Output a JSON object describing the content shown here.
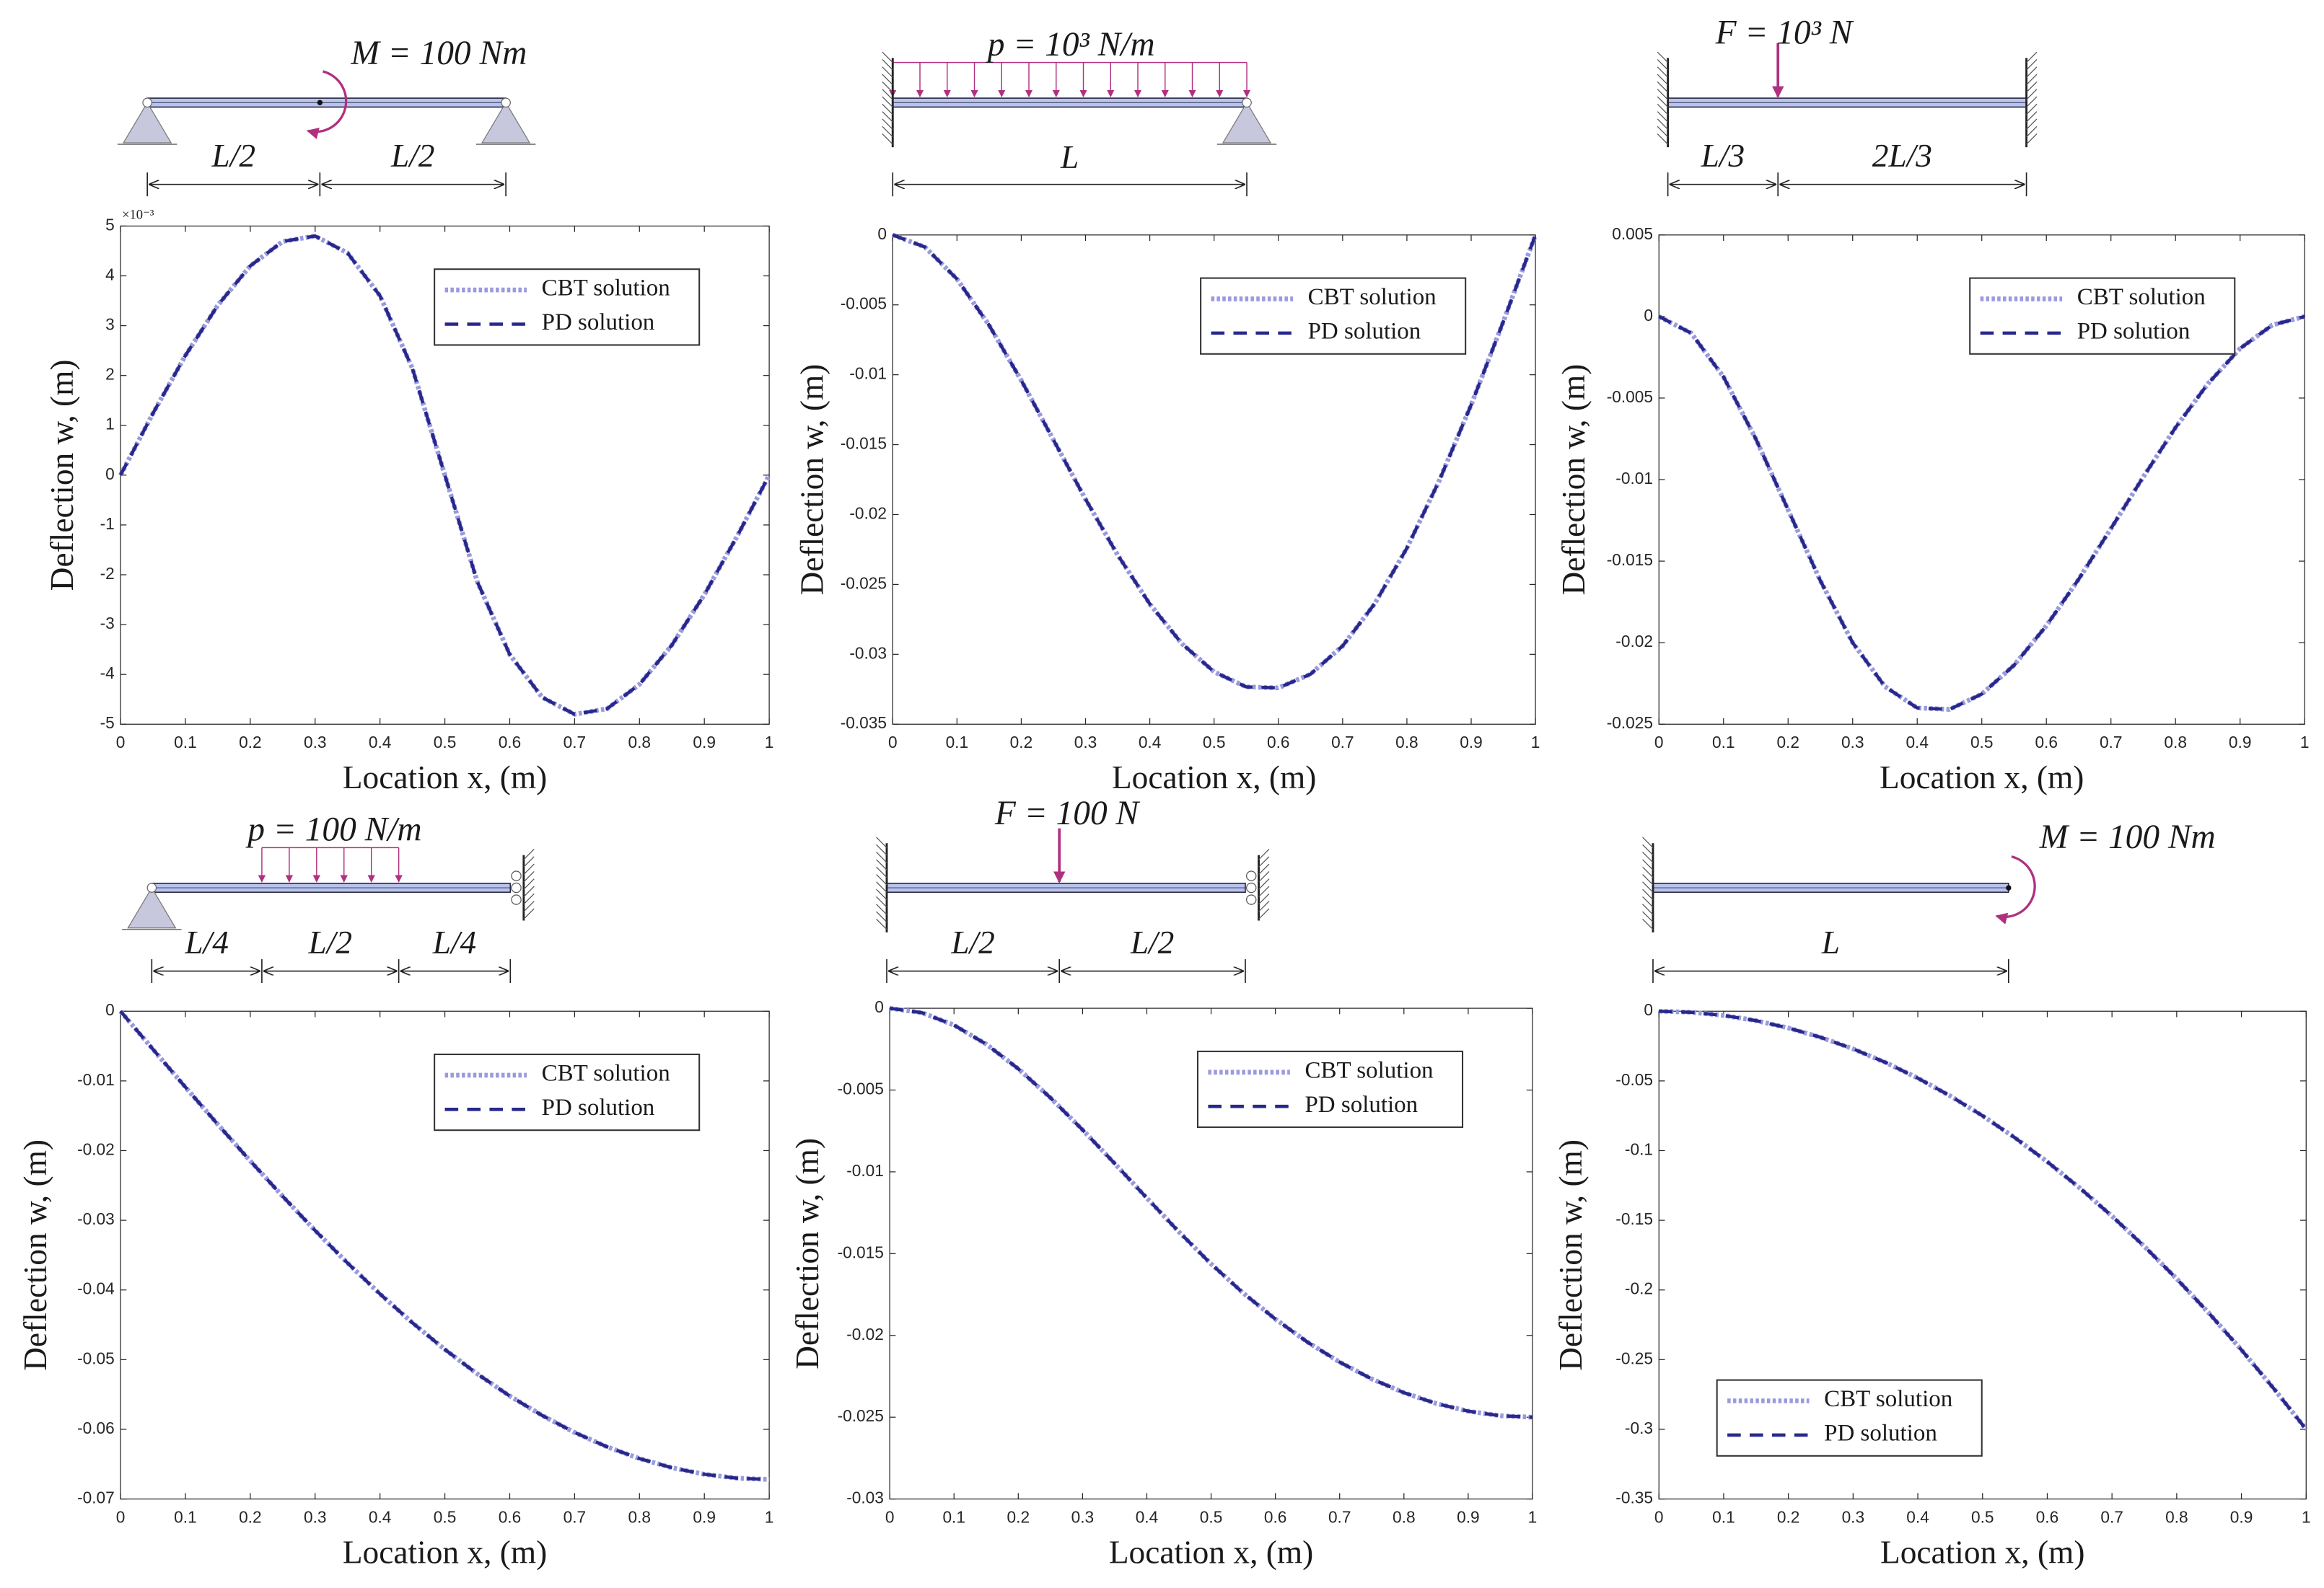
{
  "chart_data": [
    {
      "type": "line",
      "x_label": "Location x, (m)",
      "y_label": "Deflection w, (m)",
      "y_exponent": "×10⁻³",
      "load_label": "M = 100 Nm",
      "spans": [
        "L/2",
        "L/2"
      ],
      "legend": "upper right",
      "grid": false,
      "x": [
        0,
        0.05,
        0.1,
        0.15,
        0.2,
        0.25,
        0.3,
        0.35,
        0.4,
        0.45,
        0.5,
        0.55,
        0.6,
        0.65,
        0.7,
        0.75,
        0.8,
        0.85,
        0.9,
        0.95,
        1
      ],
      "xlim": [
        0,
        1
      ],
      "xticks": [
        0,
        0.1,
        0.2,
        0.3,
        0.4,
        0.5,
        0.6,
        0.7,
        0.8,
        0.9,
        1
      ],
      "ylim": [
        -5,
        5
      ],
      "yticks": [
        -5,
        -4,
        -3,
        -2,
        -1,
        0,
        1,
        2,
        3,
        4,
        5
      ],
      "series": [
        {
          "name": "CBT solution",
          "color": "#9a9ade",
          "style": "dotted",
          "values": [
            0,
            1.24,
            2.4,
            3.41,
            4.2,
            4.69,
            4.8,
            4.46,
            3.6,
            2.14,
            0,
            -2.14,
            -3.6,
            -4.46,
            -4.8,
            -4.69,
            -4.2,
            -3.41,
            -2.4,
            -1.24,
            0
          ]
        },
        {
          "name": "PD solution",
          "color": "#27278c",
          "style": "dashed",
          "values": [
            0,
            1.24,
            2.4,
            3.41,
            4.2,
            4.69,
            4.8,
            4.46,
            3.6,
            2.14,
            0,
            -2.14,
            -3.6,
            -4.46,
            -4.8,
            -4.69,
            -4.2,
            -3.41,
            -2.4,
            -1.24,
            0
          ]
        }
      ]
    },
    {
      "type": "line",
      "x_label": "Location x, (m)",
      "y_label": "Deflection w, (m)",
      "load_label": "p = 10³ N/m",
      "spans": [
        "L"
      ],
      "legend": "upper right",
      "grid": false,
      "x": [
        0,
        0.05,
        0.1,
        0.15,
        0.2,
        0.25,
        0.3,
        0.35,
        0.4,
        0.45,
        0.5,
        0.55,
        0.6,
        0.65,
        0.7,
        0.75,
        0.8,
        0.85,
        0.9,
        0.95,
        1
      ],
      "xlim": [
        0,
        1
      ],
      "xticks": [
        0,
        0.1,
        0.2,
        0.3,
        0.4,
        0.5,
        0.6,
        0.7,
        0.8,
        0.9,
        1
      ],
      "ylim": [
        -0.035,
        0
      ],
      "yticks": [
        -0.035,
        -0.03,
        -0.025,
        -0.02,
        -0.015,
        -0.01,
        -0.005,
        0
      ],
      "series": [
        {
          "name": "CBT solution",
          "color": "#9a9ade",
          "style": "dotted",
          "values": [
            0,
            -0.00086,
            -0.00315,
            -0.00646,
            -0.0104,
            -0.01465,
            -0.0189,
            -0.02289,
            -0.0264,
            -0.02924,
            -0.03125,
            -0.03233,
            -0.0324,
            -0.03142,
            -0.0294,
            -0.02637,
            -0.0224,
            -0.01761,
            -0.01215,
            -0.0062,
            0
          ]
        },
        {
          "name": "PD solution",
          "color": "#27278c",
          "style": "dashed",
          "values": [
            0,
            -0.00086,
            -0.00315,
            -0.00646,
            -0.0104,
            -0.01465,
            -0.0189,
            -0.02289,
            -0.0264,
            -0.02924,
            -0.03125,
            -0.03233,
            -0.0324,
            -0.03142,
            -0.0294,
            -0.02637,
            -0.0224,
            -0.01761,
            -0.01215,
            -0.0062,
            0
          ]
        }
      ]
    },
    {
      "type": "line",
      "x_label": "Location x, (m)",
      "y_label": "Deflection w, (m)",
      "load_label": "F = 10³ N",
      "spans": [
        "L/3",
        "2L/3"
      ],
      "legend": "upper right",
      "grid": false,
      "x": [
        0,
        0.05,
        0.1,
        0.15,
        0.2,
        0.25,
        0.3,
        0.35,
        0.4,
        0.45,
        0.5,
        0.55,
        0.6,
        0.65,
        0.7,
        0.75,
        0.8,
        0.85,
        0.9,
        0.95,
        1
      ],
      "xlim": [
        0,
        1
      ],
      "xticks": [
        0,
        0.1,
        0.2,
        0.3,
        0.4,
        0.5,
        0.6,
        0.7,
        0.8,
        0.9,
        1
      ],
      "ylim": [
        -0.025,
        0.005
      ],
      "yticks": [
        -0.025,
        -0.02,
        -0.015,
        -0.01,
        -0.005,
        0,
        0.005
      ],
      "series": [
        {
          "name": "CBT solution",
          "color": "#9a9ade",
          "style": "dotted",
          "values": [
            0,
            -0.00102,
            -0.0037,
            -0.0075,
            -0.01185,
            -0.0162,
            -0.02,
            -0.02269,
            -0.024,
            -0.02409,
            -0.02315,
            -0.02138,
            -0.01896,
            -0.01611,
            -0.013,
            -0.00984,
            -0.00681,
            -0.00413,
            -0.00196,
            -0.00052,
            0
          ]
        },
        {
          "name": "PD solution",
          "color": "#27278c",
          "style": "dashed",
          "values": [
            0,
            -0.00102,
            -0.0037,
            -0.0075,
            -0.01185,
            -0.0162,
            -0.02,
            -0.02269,
            -0.024,
            -0.02409,
            -0.02315,
            -0.02138,
            -0.01896,
            -0.01611,
            -0.013,
            -0.00984,
            -0.00681,
            -0.00413,
            -0.00196,
            -0.00052,
            0
          ]
        }
      ]
    },
    {
      "type": "line",
      "x_label": "Location x, (m)",
      "y_label": "Deflection w, (m)",
      "load_label": "p = 100 N/m",
      "spans": [
        "L/4",
        "L/2",
        "L/4"
      ],
      "legend": "upper right",
      "grid": false,
      "x": [
        0,
        0.05,
        0.1,
        0.15,
        0.2,
        0.25,
        0.3,
        0.35,
        0.4,
        0.45,
        0.5,
        0.55,
        0.6,
        0.65,
        0.7,
        0.75,
        0.8,
        0.85,
        0.9,
        0.95,
        1
      ],
      "xlim": [
        0,
        1
      ],
      "xticks": [
        0,
        0.1,
        0.2,
        0.3,
        0.4,
        0.5,
        0.6,
        0.7,
        0.8,
        0.9,
        1
      ],
      "ylim": [
        -0.07,
        0
      ],
      "yticks": [
        -0.07,
        -0.06,
        -0.05,
        -0.04,
        -0.03,
        -0.02,
        -0.01,
        0
      ],
      "series": [
        {
          "name": "CBT solution",
          "color": "#9a9ade",
          "style": "dotted",
          "values": [
            0,
            -0.00546,
            -0.01089,
            -0.01624,
            -0.02148,
            -0.02656,
            -0.03147,
            -0.03614,
            -0.04057,
            -0.04471,
            -0.04854,
            -0.05205,
            -0.05521,
            -0.05801,
            -0.06045,
            -0.06251,
            -0.0642,
            -0.06551,
            -0.06645,
            -0.06701,
            -0.0672
          ]
        },
        {
          "name": "PD solution",
          "color": "#27278c",
          "style": "dashed",
          "values": [
            0,
            -0.00546,
            -0.01089,
            -0.01624,
            -0.02148,
            -0.02656,
            -0.03147,
            -0.03614,
            -0.04057,
            -0.04471,
            -0.04854,
            -0.05205,
            -0.05521,
            -0.05801,
            -0.06045,
            -0.06251,
            -0.0642,
            -0.06551,
            -0.06645,
            -0.06701,
            -0.0672
          ]
        }
      ]
    },
    {
      "type": "line",
      "x_label": "Location x, (m)",
      "y_label": "Deflection w, (m)",
      "load_label": "F = 100 N",
      "spans": [
        "L/2",
        "L/2"
      ],
      "legend": "upper right",
      "grid": false,
      "x": [
        0,
        0.05,
        0.1,
        0.15,
        0.2,
        0.25,
        0.3,
        0.35,
        0.4,
        0.45,
        0.5,
        0.55,
        0.6,
        0.65,
        0.7,
        0.75,
        0.8,
        0.85,
        0.9,
        0.95,
        1
      ],
      "xlim": [
        0,
        1
      ],
      "xticks": [
        0,
        0.1,
        0.2,
        0.3,
        0.4,
        0.5,
        0.6,
        0.7,
        0.8,
        0.9,
        1
      ],
      "ylim": [
        -0.03,
        0
      ],
      "yticks": [
        -0.03,
        -0.025,
        -0.02,
        -0.015,
        -0.01,
        -0.005,
        0
      ],
      "series": [
        {
          "name": "CBT solution",
          "color": "#9a9ade",
          "style": "dotted",
          "values": [
            0,
            -0.00027,
            -0.00103,
            -0.00219,
            -0.0037,
            -0.00547,
            -0.00743,
            -0.00949,
            -0.0116,
            -0.01367,
            -0.01563,
            -0.01741,
            -0.019,
            -0.02041,
            -0.02163,
            -0.02266,
            -0.0235,
            -0.02416,
            -0.02463,
            -0.02491,
            -0.025
          ]
        },
        {
          "name": "PD solution",
          "color": "#27278c",
          "style": "dashed",
          "values": [
            0,
            -0.00027,
            -0.00103,
            -0.00219,
            -0.0037,
            -0.00547,
            -0.00743,
            -0.00949,
            -0.0116,
            -0.01367,
            -0.01563,
            -0.01741,
            -0.019,
            -0.02041,
            -0.02163,
            -0.02266,
            -0.0235,
            -0.02416,
            -0.02463,
            -0.02491,
            -0.025
          ]
        }
      ]
    },
    {
      "type": "line",
      "x_label": "Location x, (m)",
      "y_label": "Deflection w, (m)",
      "load_label": "M = 100 Nm",
      "spans": [
        "L"
      ],
      "legend": "lower left",
      "grid": false,
      "x": [
        0,
        0.05,
        0.1,
        0.15,
        0.2,
        0.25,
        0.3,
        0.35,
        0.4,
        0.45,
        0.5,
        0.55,
        0.6,
        0.65,
        0.7,
        0.75,
        0.8,
        0.85,
        0.9,
        0.95,
        1
      ],
      "xlim": [
        0,
        1
      ],
      "xticks": [
        0,
        0.1,
        0.2,
        0.3,
        0.4,
        0.5,
        0.6,
        0.7,
        0.8,
        0.9,
        1
      ],
      "ylim": [
        -0.35,
        0
      ],
      "yticks": [
        -0.35,
        -0.3,
        -0.25,
        -0.2,
        -0.15,
        -0.1,
        -0.05,
        0
      ],
      "series": [
        {
          "name": "CBT solution",
          "color": "#9a9ade",
          "style": "dotted",
          "values": [
            0,
            -0.00075,
            -0.003,
            -0.00675,
            -0.012,
            -0.01875,
            -0.027,
            -0.03675,
            -0.048,
            -0.06075,
            -0.075,
            -0.09075,
            -0.108,
            -0.12675,
            -0.147,
            -0.16875,
            -0.192,
            -0.21675,
            -0.243,
            -0.27075,
            -0.3
          ]
        },
        {
          "name": "PD solution",
          "color": "#27278c",
          "style": "dashed",
          "values": [
            0,
            -0.00075,
            -0.003,
            -0.00675,
            -0.012,
            -0.01875,
            -0.027,
            -0.03675,
            -0.048,
            -0.06075,
            -0.075,
            -0.09075,
            -0.108,
            -0.12675,
            -0.147,
            -0.16875,
            -0.192,
            -0.21675,
            -0.243,
            -0.27075,
            -0.3
          ]
        }
      ]
    }
  ]
}
